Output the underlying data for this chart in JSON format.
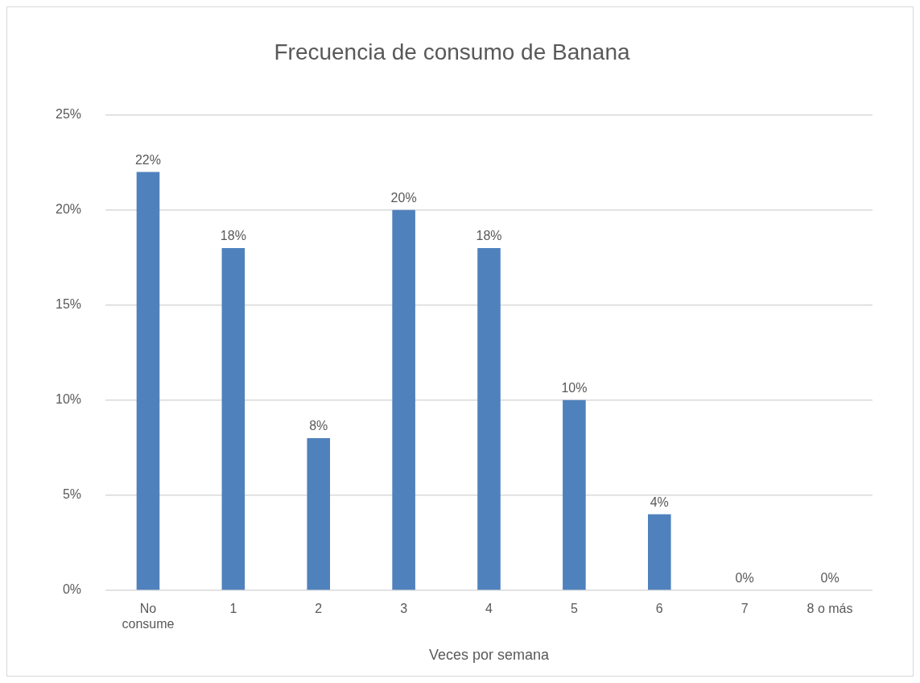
{
  "chart_data": {
    "type": "bar",
    "title": "Frecuencia de consumo de Banana",
    "xlabel": "Veces por semana",
    "categories": [
      "No consume",
      "1",
      "2",
      "3",
      "4",
      "5",
      "6",
      "7",
      "8 o más"
    ],
    "values": [
      22,
      18,
      8,
      20,
      18,
      10,
      4,
      0,
      0
    ],
    "value_labels": [
      "22%",
      "18%",
      "8%",
      "20%",
      "18%",
      "10%",
      "4%",
      "0%",
      "0%"
    ],
    "color": "#4f81bd",
    "ylim": [
      0,
      25
    ],
    "yticks": [
      {
        "value": 0,
        "label": "0%"
      },
      {
        "value": 5,
        "label": "5%"
      },
      {
        "value": 10,
        "label": "10%"
      },
      {
        "value": 15,
        "label": "15%"
      },
      {
        "value": 20,
        "label": "20%"
      },
      {
        "value": 25,
        "label": "25%"
      }
    ],
    "grid": "y"
  }
}
